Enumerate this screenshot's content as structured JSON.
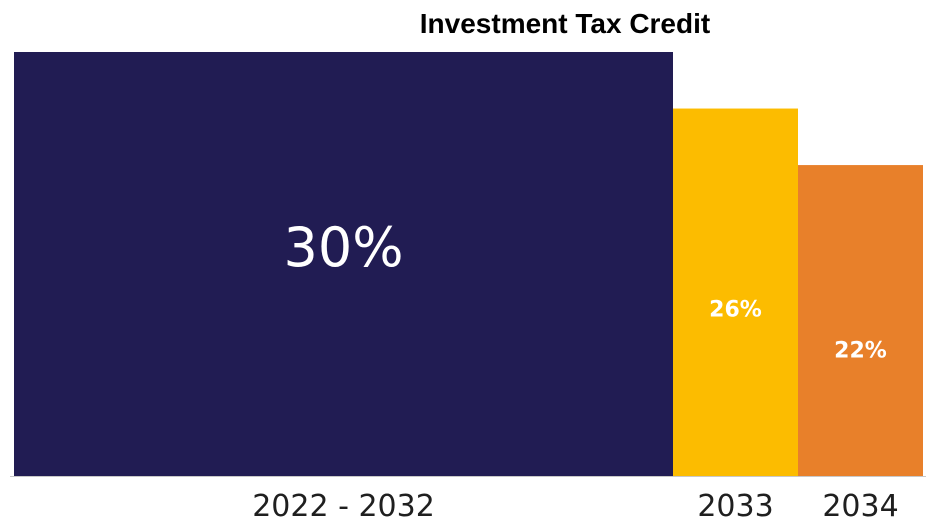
{
  "chart_data": {
    "type": "bar",
    "title": "Investment Tax Credit",
    "xlabel": "",
    "ylabel": "",
    "categories": [
      "2022 - 2032",
      "2033",
      "2034"
    ],
    "values": [
      30,
      26,
      22
    ],
    "value_labels": [
      "30%",
      "26%",
      "22%"
    ],
    "ylim": [
      0,
      30
    ],
    "grid": false,
    "legend": "none",
    "colors": [
      "#211c53",
      "#fcbc00",
      "#e8802a"
    ],
    "label_color": "#ffffff"
  }
}
